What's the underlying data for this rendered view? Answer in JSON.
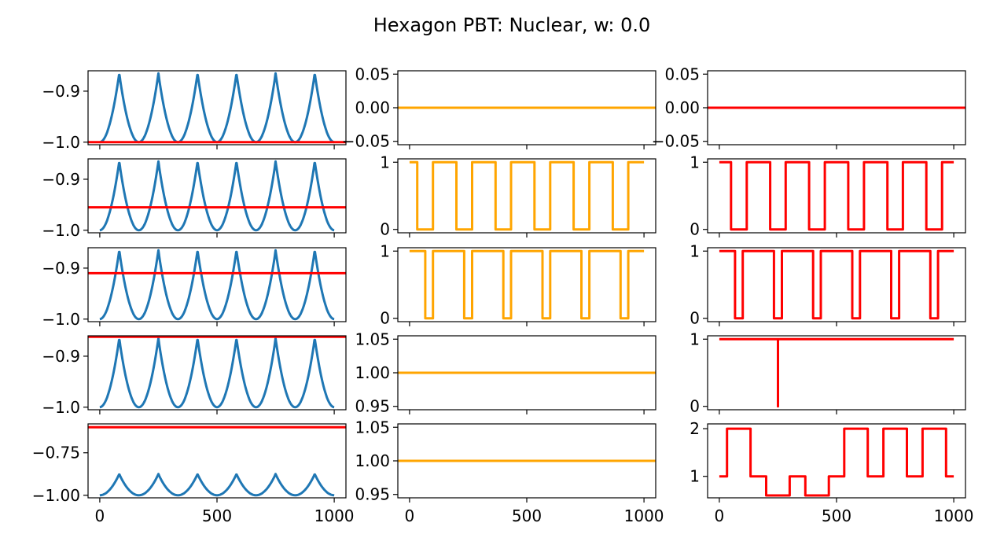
{
  "figure": {
    "title": "Hexagon PBT: Nuclear, w: 0.0",
    "colors": {
      "blue": "#1f77b4",
      "orange": "#ffa500",
      "red": "#ff0000",
      "axis": "#000000"
    }
  },
  "chart_data": [
    {
      "type": "line",
      "row": 0,
      "col": 0,
      "xlim": [
        -50,
        1050
      ],
      "ylim": [
        -1.005,
        -0.86
      ],
      "yticks": [
        -0.9,
        -1.0
      ],
      "ytick_labels": [
        "−0.9",
        "−1.0"
      ],
      "series": [
        {
          "color": "blue",
          "kind": "humps",
          "peaks": [
            83,
            250,
            417,
            583,
            750,
            917
          ],
          "period": 166.7,
          "min": -1.0,
          "max": -0.865
        },
        {
          "color": "red",
          "kind": "hline",
          "value": -1.0
        }
      ]
    },
    {
      "type": "line",
      "row": 0,
      "col": 1,
      "xlim": [
        -50,
        1050
      ],
      "ylim": [
        -0.055,
        0.055
      ],
      "yticks": [
        0.05,
        0.0,
        -0.05
      ],
      "ytick_labels": [
        "0.05",
        "0.00",
        "−0.05"
      ],
      "series": [
        {
          "color": "orange",
          "kind": "hline",
          "value": 0.0
        }
      ]
    },
    {
      "type": "line",
      "row": 0,
      "col": 2,
      "xlim": [
        -50,
        1050
      ],
      "ylim": [
        -0.055,
        0.055
      ],
      "yticks": [
        0.05,
        0.0,
        -0.05
      ],
      "ytick_labels": [
        "0.05",
        "0.00",
        "−0.05"
      ],
      "series": [
        {
          "color": "red",
          "kind": "hline",
          "value": 0.0
        }
      ]
    },
    {
      "type": "line",
      "row": 1,
      "col": 0,
      "xlim": [
        -50,
        1050
      ],
      "ylim": [
        -1.005,
        -0.86
      ],
      "yticks": [
        -0.9,
        -1.0
      ],
      "ytick_labels": [
        "−0.9",
        "−1.0"
      ],
      "series": [
        {
          "color": "blue",
          "kind": "humps",
          "peaks": [
            83,
            250,
            417,
            583,
            750,
            917
          ],
          "period": 166.7,
          "min": -1.0,
          "max": -0.865
        },
        {
          "color": "red",
          "kind": "hline",
          "value": -0.955
        }
      ]
    },
    {
      "type": "line",
      "row": 1,
      "col": 1,
      "xlim": [
        -50,
        1050
      ],
      "ylim": [
        -0.05,
        1.05
      ],
      "yticks": [
        1,
        0
      ],
      "ytick_labels": [
        "1",
        "0"
      ],
      "series": [
        {
          "color": "orange",
          "kind": "step",
          "points": [
            [
              0,
              1
            ],
            [
              33,
              1
            ],
            [
              33,
              0
            ],
            [
              100,
              0
            ],
            [
              100,
              1
            ],
            [
              200,
              1
            ],
            [
              200,
              0
            ],
            [
              267,
              0
            ],
            [
              267,
              1
            ],
            [
              367,
              1
            ],
            [
              367,
              0
            ],
            [
              433,
              0
            ],
            [
              433,
              1
            ],
            [
              533,
              1
            ],
            [
              533,
              0
            ],
            [
              600,
              0
            ],
            [
              600,
              1
            ],
            [
              700,
              1
            ],
            [
              700,
              0
            ],
            [
              767,
              0
            ],
            [
              767,
              1
            ],
            [
              867,
              1
            ],
            [
              867,
              0
            ],
            [
              933,
              0
            ],
            [
              933,
              1
            ],
            [
              1000,
              1
            ]
          ]
        }
      ]
    },
    {
      "type": "line",
      "row": 1,
      "col": 2,
      "xlim": [
        -50,
        1050
      ],
      "ylim": [
        -0.05,
        1.05
      ],
      "yticks": [
        1,
        0
      ],
      "ytick_labels": [
        "1",
        "0"
      ],
      "series": [
        {
          "color": "red",
          "kind": "step",
          "points": [
            [
              0,
              1
            ],
            [
              50,
              1
            ],
            [
              50,
              0
            ],
            [
              117,
              0
            ],
            [
              117,
              1
            ],
            [
              217,
              1
            ],
            [
              217,
              0
            ],
            [
              283,
              0
            ],
            [
              283,
              1
            ],
            [
              383,
              1
            ],
            [
              383,
              0
            ],
            [
              450,
              0
            ],
            [
              450,
              1
            ],
            [
              550,
              1
            ],
            [
              550,
              0
            ],
            [
              617,
              0
            ],
            [
              617,
              1
            ],
            [
              717,
              1
            ],
            [
              717,
              0
            ],
            [
              783,
              0
            ],
            [
              783,
              1
            ],
            [
              883,
              1
            ],
            [
              883,
              0
            ],
            [
              950,
              0
            ],
            [
              950,
              1
            ],
            [
              1000,
              1
            ]
          ]
        }
      ]
    },
    {
      "type": "line",
      "row": 2,
      "col": 0,
      "xlim": [
        -50,
        1050
      ],
      "ylim": [
        -1.005,
        -0.86
      ],
      "yticks": [
        -0.9,
        -1.0
      ],
      "ytick_labels": [
        "−0.9",
        "−1.0"
      ],
      "series": [
        {
          "color": "blue",
          "kind": "humps",
          "peaks": [
            83,
            250,
            417,
            583,
            750,
            917
          ],
          "period": 166.7,
          "min": -1.0,
          "max": -0.865
        },
        {
          "color": "red",
          "kind": "hline",
          "value": -0.91
        }
      ]
    },
    {
      "type": "line",
      "row": 2,
      "col": 1,
      "xlim": [
        -50,
        1050
      ],
      "ylim": [
        -0.05,
        1.05
      ],
      "yticks": [
        1,
        0
      ],
      "ytick_labels": [
        "1",
        "0"
      ],
      "series": [
        {
          "color": "orange",
          "kind": "step",
          "points": [
            [
              0,
              1
            ],
            [
              67,
              1
            ],
            [
              67,
              0
            ],
            [
              100,
              0
            ],
            [
              100,
              1
            ],
            [
              233,
              1
            ],
            [
              233,
              0
            ],
            [
              267,
              0
            ],
            [
              267,
              1
            ],
            [
              400,
              1
            ],
            [
              400,
              0
            ],
            [
              433,
              0
            ],
            [
              433,
              1
            ],
            [
              567,
              1
            ],
            [
              567,
              0
            ],
            [
              600,
              0
            ],
            [
              600,
              1
            ],
            [
              733,
              1
            ],
            [
              733,
              0
            ],
            [
              767,
              0
            ],
            [
              767,
              1
            ],
            [
              900,
              1
            ],
            [
              900,
              0
            ],
            [
              933,
              0
            ],
            [
              933,
              1
            ],
            [
              1000,
              1
            ]
          ]
        }
      ]
    },
    {
      "type": "line",
      "row": 2,
      "col": 2,
      "xlim": [
        -50,
        1050
      ],
      "ylim": [
        -0.05,
        1.05
      ],
      "yticks": [
        1,
        0
      ],
      "ytick_labels": [
        "1",
        "0"
      ],
      "series": [
        {
          "color": "red",
          "kind": "step",
          "points": [
            [
              0,
              1
            ],
            [
              67,
              1
            ],
            [
              67,
              0
            ],
            [
              100,
              0
            ],
            [
              100,
              1
            ],
            [
              233,
              1
            ],
            [
              233,
              0
            ],
            [
              267,
              0
            ],
            [
              267,
              1
            ],
            [
              400,
              1
            ],
            [
              400,
              0
            ],
            [
              433,
              0
            ],
            [
              433,
              1
            ],
            [
              567,
              1
            ],
            [
              567,
              0
            ],
            [
              600,
              0
            ],
            [
              600,
              1
            ],
            [
              733,
              1
            ],
            [
              733,
              0
            ],
            [
              767,
              0
            ],
            [
              767,
              1
            ],
            [
              900,
              1
            ],
            [
              900,
              0
            ],
            [
              933,
              0
            ],
            [
              933,
              1
            ],
            [
              1000,
              1
            ]
          ]
        }
      ]
    },
    {
      "type": "line",
      "row": 3,
      "col": 0,
      "xlim": [
        -50,
        1050
      ],
      "ylim": [
        -1.005,
        -0.86
      ],
      "yticks": [
        -0.9,
        -1.0
      ],
      "ytick_labels": [
        "−0.9",
        "−1.0"
      ],
      "series": [
        {
          "color": "blue",
          "kind": "humps",
          "peaks": [
            83,
            250,
            417,
            583,
            750,
            917
          ],
          "period": 166.7,
          "min": -1.0,
          "max": -0.865
        },
        {
          "color": "red",
          "kind": "hline",
          "value": -0.862
        }
      ]
    },
    {
      "type": "line",
      "row": 3,
      "col": 1,
      "xlim": [
        -50,
        1050
      ],
      "ylim": [
        0.945,
        1.055
      ],
      "yticks": [
        1.05,
        1.0,
        0.95
      ],
      "ytick_labels": [
        "1.05",
        "1.00",
        "0.95"
      ],
      "series": [
        {
          "color": "orange",
          "kind": "hline",
          "value": 1.0
        }
      ]
    },
    {
      "type": "line",
      "row": 3,
      "col": 2,
      "xlim": [
        -50,
        1050
      ],
      "ylim": [
        -0.05,
        1.05
      ],
      "yticks": [
        1,
        0
      ],
      "ytick_labels": [
        "1",
        "0"
      ],
      "series": [
        {
          "color": "red",
          "kind": "step",
          "points": [
            [
              0,
              1
            ],
            [
              250,
              1
            ],
            [
              250,
              0
            ],
            [
              250,
              1
            ],
            [
              1000,
              1
            ]
          ]
        }
      ]
    },
    {
      "type": "line",
      "row": 4,
      "col": 0,
      "xlim": [
        -50,
        1050
      ],
      "ylim": [
        -1.015,
        -0.58
      ],
      "yticks": [
        -0.75,
        -1.0
      ],
      "ytick_labels": [
        "−0.75",
        "−1.00"
      ],
      "xticks": [
        0,
        500,
        1000
      ],
      "xtick_labels": [
        "0",
        "500",
        "1000"
      ],
      "series": [
        {
          "color": "blue",
          "kind": "humps",
          "peaks": [
            83,
            250,
            417,
            583,
            750,
            917
          ],
          "period": 166.7,
          "min": -1.0,
          "max": -0.875
        },
        {
          "color": "red",
          "kind": "hline",
          "value": -0.6
        }
      ]
    },
    {
      "type": "line",
      "row": 4,
      "col": 1,
      "xlim": [
        -50,
        1050
      ],
      "ylim": [
        0.945,
        1.055
      ],
      "yticks": [
        1.05,
        1.0,
        0.95
      ],
      "ytick_labels": [
        "1.05",
        "1.00",
        "0.95"
      ],
      "xticks": [
        0,
        500,
        1000
      ],
      "xtick_labels": [
        "0",
        "500",
        "1000"
      ],
      "series": [
        {
          "color": "orange",
          "kind": "hline",
          "value": 1.0
        }
      ]
    },
    {
      "type": "line",
      "row": 4,
      "col": 2,
      "xlim": [
        -50,
        1050
      ],
      "ylim": [
        0.55,
        2.1
      ],
      "yticks": [
        2,
        1
      ],
      "ytick_labels": [
        "2",
        "1"
      ],
      "xticks": [
        0,
        500,
        1000
      ],
      "xtick_labels": [
        "0",
        "500",
        "1000"
      ],
      "series": [
        {
          "color": "red",
          "kind": "step",
          "points": [
            [
              0,
              1
            ],
            [
              33,
              1
            ],
            [
              33,
              2
            ],
            [
              133,
              2
            ],
            [
              133,
              1
            ],
            [
              200,
              1
            ],
            [
              200,
              0.6
            ],
            [
              300,
              0.6
            ],
            [
              300,
              1
            ],
            [
              367,
              1
            ],
            [
              367,
              0.6
            ],
            [
              467,
              0.6
            ],
            [
              467,
              1
            ],
            [
              533,
              1
            ],
            [
              533,
              2
            ],
            [
              633,
              2
            ],
            [
              633,
              1
            ],
            [
              700,
              1
            ],
            [
              700,
              2
            ],
            [
              800,
              2
            ],
            [
              800,
              1
            ],
            [
              867,
              1
            ],
            [
              867,
              2
            ],
            [
              967,
              2
            ],
            [
              967,
              1
            ],
            [
              1000,
              1
            ]
          ]
        }
      ]
    }
  ]
}
